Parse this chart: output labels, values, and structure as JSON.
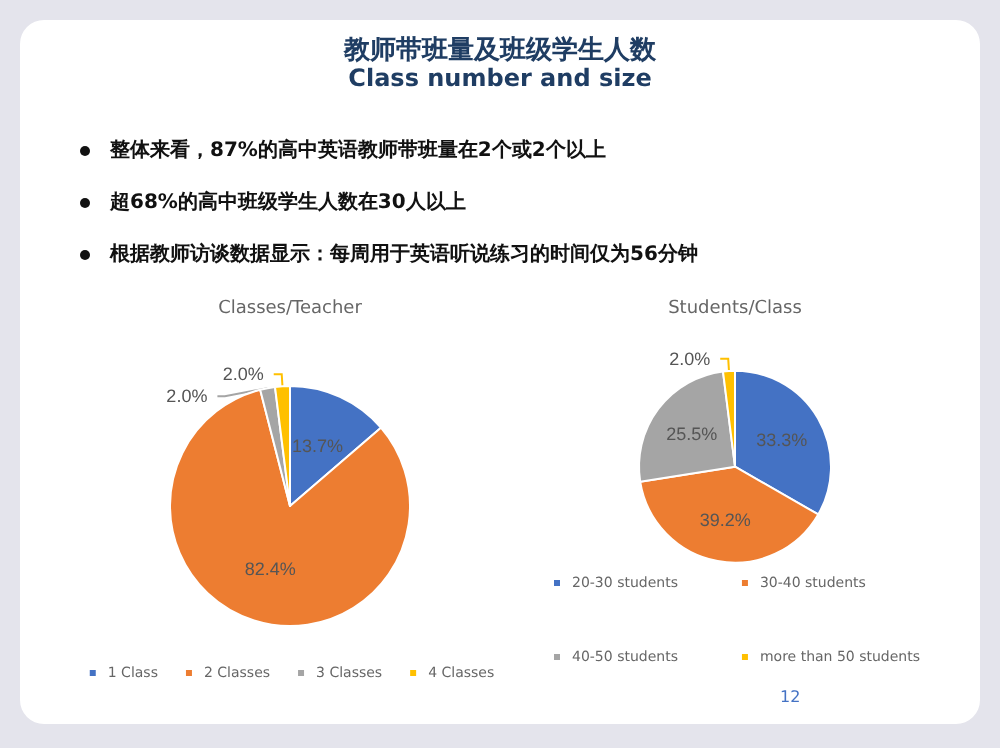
{
  "chart_data": [
    {
      "type": "pie",
      "title": "Classes/Teacher",
      "categories": [
        "1 Class",
        "2 Classes",
        "3 Classes",
        "4 Classes"
      ],
      "values": [
        13.7,
        82.4,
        2.0,
        2.0
      ],
      "value_labels": [
        "13.7%",
        "82.4%",
        "2.0%",
        "2.0%"
      ],
      "colors": [
        "#4472c4",
        "#ed7d31",
        "#a5a5a5",
        "#ffc000"
      ],
      "legend": "bottom",
      "annotations": [
        "教师带班量及班级学生人数",
        "Class number and size",
        "整体来看，87%的高中英语教师带班量在2个或2个以上",
        "超68%的高中班级学生人数在30人以上",
        "根据教师访谈数据显示：每周用于英语听说练习的时间仅为56分钟"
      ]
    },
    {
      "type": "pie",
      "title": "Students/Class",
      "categories": [
        "20-30 students",
        "30-40 students",
        "40-50 students",
        "more than 50 students"
      ],
      "values": [
        33.3,
        39.2,
        25.5,
        2.0
      ],
      "value_labels": [
        "33.3%",
        "39.2%",
        "25.5%",
        "2.0%"
      ],
      "colors": [
        "#4472c4",
        "#ed7d31",
        "#a5a5a5",
        "#ffc000"
      ],
      "legend": "bottom",
      "annotations": [
        "12"
      ]
    }
  ]
}
